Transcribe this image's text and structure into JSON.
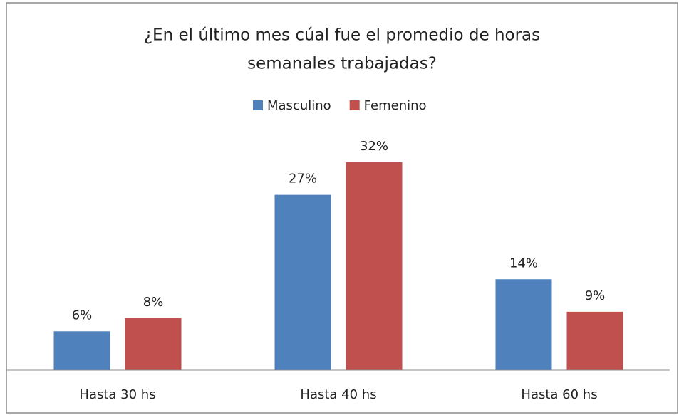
{
  "chart_data": {
    "type": "bar",
    "title": [
      "¿En el último mes cúal fue el promedio de horas",
      "semanales trabajadas?"
    ],
    "categories": [
      "Hasta 30 hs",
      "Hasta 40 hs",
      "Hasta 60 hs"
    ],
    "series": [
      {
        "name": "Masculino",
        "color": "#4f81bd",
        "values": [
          6,
          27,
          14
        ],
        "value_labels": [
          "6%",
          "27%",
          "14%"
        ]
      },
      {
        "name": "Femenino",
        "color": "#c0504d",
        "values": [
          8,
          32,
          9
        ],
        "value_labels": [
          "8%",
          "32%",
          "9%"
        ]
      }
    ],
    "legend": "top"
  }
}
